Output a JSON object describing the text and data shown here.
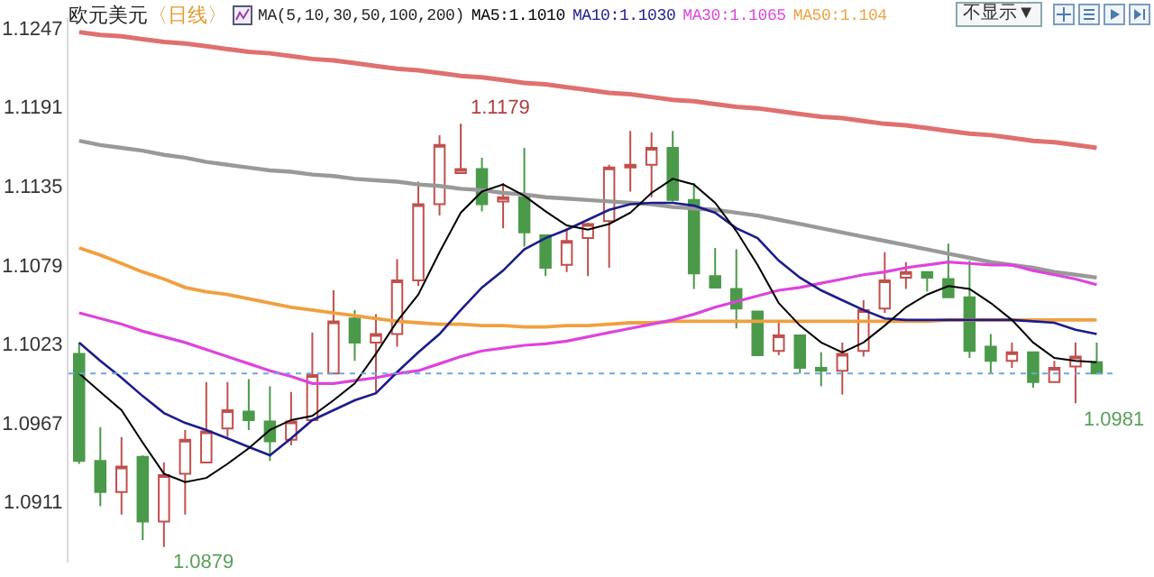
{
  "chart_data": {
    "type": "candlestick",
    "title": "欧元美元",
    "subtitle": "〈日线〉",
    "legend_title": "MA(5,10,30,50,100,200)",
    "legend": "top",
    "categories": [
      null,
      null,
      null,
      null,
      null,
      null,
      null,
      null,
      null,
      null,
      null,
      null,
      null,
      null,
      null,
      null,
      null,
      null,
      null,
      null,
      null,
      null,
      null,
      null,
      null,
      null,
      null,
      null,
      null,
      null,
      null,
      null,
      null,
      null,
      null,
      null,
      null,
      null,
      null,
      null,
      null,
      null,
      null,
      null,
      null,
      null,
      null,
      null,
      null
    ],
    "ohlc": [
      [
        1.1016,
        1.1024,
        1.0938,
        1.094
      ],
      [
        1.094,
        1.0964,
        1.0908,
        1.0918
      ],
      [
        1.0918,
        1.0957,
        1.0902,
        1.0936
      ],
      [
        1.0943,
        1.0944,
        1.0884,
        1.0897
      ],
      [
        1.0897,
        1.0939,
        1.0879,
        1.093
      ],
      [
        1.0931,
        1.0962,
        1.0902,
        1.0955
      ],
      [
        1.0939,
        1.0996,
        1.0939,
        1.0961
      ],
      [
        1.0963,
        1.0996,
        1.0957,
        1.0976
      ],
      [
        1.0975,
        1.0998,
        1.0962,
        1.0969
      ],
      [
        1.0968,
        1.0993,
        1.094,
        1.0954
      ],
      [
        1.0955,
        1.0989,
        1.0951,
        1.0968
      ],
      [
        1.0969,
        1.1031,
        1.0969,
        1.1001
      ],
      [
        1.1002,
        1.1061,
        1.1002,
        1.1039
      ],
      [
        1.1041,
        1.1047,
        1.1011,
        1.1024
      ],
      [
        1.1024,
        1.1044,
        1.0989,
        1.103
      ],
      [
        1.103,
        1.1083,
        1.1021,
        1.1068
      ],
      [
        1.1068,
        1.1138,
        1.1064,
        1.1122
      ],
      [
        1.1122,
        1.1171,
        1.1114,
        1.1164
      ],
      [
        1.1144,
        1.1179,
        1.1144,
        1.1147
      ],
      [
        1.1147,
        1.1155,
        1.1117,
        1.1122
      ],
      [
        1.1124,
        1.1137,
        1.1105,
        1.1127
      ],
      [
        1.1127,
        1.1162,
        1.1092,
        1.1102
      ],
      [
        1.11,
        1.11,
        1.1071,
        1.1077
      ],
      [
        1.1079,
        1.1105,
        1.1074,
        1.1096
      ],
      [
        1.1098,
        1.1109,
        1.1071,
        1.1108
      ],
      [
        1.111,
        1.115,
        1.1077,
        1.1148
      ],
      [
        1.1148,
        1.1174,
        1.1131,
        1.115
      ],
      [
        1.115,
        1.1173,
        1.1127,
        1.1162
      ],
      [
        1.1162,
        1.1174,
        1.1124,
        1.1125
      ],
      [
        1.1125,
        1.1137,
        1.1062,
        1.1073
      ],
      [
        1.1071,
        1.1091,
        1.1063,
        1.1063
      ],
      [
        1.1062,
        1.109,
        1.1034,
        1.1048
      ],
      [
        1.1046,
        1.1046,
        1.1015,
        1.1015
      ],
      [
        1.1018,
        1.1039,
        1.1015,
        1.1029
      ],
      [
        1.1029,
        1.1029,
        1.1002,
        1.1006
      ],
      [
        1.1006,
        1.1017,
        1.0993,
        1.1004
      ],
      [
        1.1004,
        1.1024,
        1.0987,
        1.1016
      ],
      [
        1.1018,
        1.1054,
        1.1014,
        1.1047
      ],
      [
        1.1048,
        1.1088,
        1.1045,
        1.1068
      ],
      [
        1.107,
        1.1081,
        1.1062,
        1.1074
      ],
      [
        1.1074,
        1.1074,
        1.106,
        1.107
      ],
      [
        1.1069,
        1.1094,
        1.1056,
        1.1056
      ],
      [
        1.1056,
        1.1082,
        1.1013,
        1.1018
      ],
      [
        1.1021,
        1.103,
        1.1002,
        1.1011
      ],
      [
        1.1011,
        1.1024,
        1.1006,
        1.1017
      ],
      [
        1.1017,
        1.1017,
        1.0992,
        1.0996
      ],
      [
        1.0996,
        1.1011,
        1.0996,
        1.1006
      ],
      [
        1.1007,
        1.1024,
        1.0981,
        1.1014
      ],
      [
        1.101,
        1.1024,
        1.1002,
        1.1002
      ]
    ],
    "series": [
      {
        "type": "line",
        "color": "#e07070",
        "values": [
          1.1244,
          1.1242,
          1.1241,
          1.1239,
          1.1237,
          1.1236,
          1.1234,
          1.1232,
          1.123,
          1.1229,
          1.1227,
          1.1225,
          1.1224,
          1.1222,
          1.122,
          1.1218,
          1.1217,
          1.1215,
          1.1213,
          1.1212,
          1.121,
          1.1208,
          1.1207,
          1.1205,
          1.1203,
          1.1201,
          1.12,
          1.1198,
          1.1196,
          1.1195,
          1.1193,
          1.1191,
          1.119,
          1.1188,
          1.1186,
          1.1184,
          1.1183,
          1.1181,
          1.1179,
          1.1178,
          1.1176,
          1.1174,
          1.1172,
          1.1171,
          1.1169,
          1.1167,
          1.1166,
          1.1164,
          1.1162
        ]
      },
      {
        "type": "line",
        "color": "#999999",
        "values": [
          1.1167,
          1.1164,
          1.1162,
          1.116,
          1.1157,
          1.1155,
          1.1152,
          1.115,
          1.1148,
          1.1146,
          1.1145,
          1.1143,
          1.1142,
          1.114,
          1.1139,
          1.1138,
          1.1136,
          1.1135,
          1.1133,
          1.1132,
          1.113,
          1.1129,
          1.1127,
          1.1126,
          1.1125,
          1.1124,
          1.1123,
          1.1122,
          1.112,
          1.1119,
          1.1118,
          1.1116,
          1.1114,
          1.1111,
          1.1108,
          1.1105,
          1.1102,
          1.1099,
          1.1096,
          1.1093,
          1.109,
          1.1087,
          1.1084,
          1.1081,
          1.1079,
          1.1077,
          1.1074,
          1.1072,
          1.107
        ]
      },
      {
        "type": "line",
        "name": "MA50:1.104",
        "color": "#f0a040",
        "values": [
          1.1091,
          1.1086,
          1.108,
          1.1074,
          1.1069,
          1.1063,
          1.106,
          1.1058,
          1.1055,
          1.1052,
          1.1049,
          1.1047,
          1.1045,
          1.1043,
          1.1041,
          1.1039,
          1.1038,
          1.1037,
          1.1037,
          1.1036,
          1.1036,
          1.1035,
          1.1035,
          1.1036,
          1.1036,
          1.1037,
          1.1038,
          1.1038,
          1.1039,
          1.1039,
          1.1039,
          1.1039,
          1.1039,
          1.1039,
          1.1039,
          1.1039,
          1.1039,
          1.1039,
          1.1039,
          1.1039,
          1.1039,
          1.104,
          1.104,
          1.104,
          1.104,
          1.104,
          1.104,
          1.104,
          1.104
        ]
      },
      {
        "type": "line",
        "name": "MA30:1.1065",
        "color": "#dd44dd",
        "values": [
          1.1045,
          1.1041,
          1.1037,
          1.1032,
          1.1028,
          1.1024,
          1.1019,
          1.1014,
          1.1009,
          1.1004,
          1.1,
          1.0995,
          1.0995,
          1.0997,
          1.0999,
          1.1002,
          1.1004,
          1.1009,
          1.1014,
          1.1018,
          1.102,
          1.1022,
          1.1023,
          1.1025,
          1.1028,
          1.1031,
          1.1034,
          1.1037,
          1.104,
          1.1044,
          1.1049,
          1.1053,
          1.1057,
          1.1061,
          1.1063,
          1.1066,
          1.1069,
          1.1072,
          1.1074,
          1.1077,
          1.1079,
          1.1081,
          1.108,
          1.1079,
          1.1079,
          1.1075,
          1.1072,
          1.1069,
          1.1065
        ]
      },
      {
        "type": "line",
        "name": "MA10:1.1030",
        "color": "#1c1c8c",
        "values": [
          1.1024,
          1.1011,
          1.0999,
          1.0986,
          1.0974,
          1.0967,
          1.0962,
          1.0956,
          1.095,
          1.0944,
          1.0956,
          1.0969,
          1.0976,
          1.0983,
          1.0988,
          1.1003,
          1.1017,
          1.103,
          1.1047,
          1.1063,
          1.1075,
          1.109,
          1.1098,
          1.1104,
          1.1111,
          1.1118,
          1.1122,
          1.1123,
          1.1123,
          1.1121,
          1.1116,
          1.1105,
          1.1098,
          1.1082,
          1.107,
          1.1061,
          1.1054,
          1.1047,
          1.1041,
          1.104,
          1.104,
          1.104,
          1.104,
          1.104,
          1.104,
          1.1039,
          1.1038,
          1.1033,
          1.103
        ]
      },
      {
        "type": "line",
        "name": "MA5:1.1010",
        "color": "#000000",
        "values": [
          1.1002,
          1.0989,
          1.0976,
          1.0953,
          1.0931,
          1.0925,
          1.0928,
          1.0938,
          1.0949,
          1.0962,
          1.0969,
          1.0972,
          1.0983,
          1.0995,
          1.1016,
          1.1039,
          1.1058,
          1.1088,
          1.1116,
          1.1131,
          1.1136,
          1.1128,
          1.1117,
          1.1107,
          1.1104,
          1.1108,
          1.1116,
          1.113,
          1.114,
          1.1136,
          1.1123,
          1.1103,
          1.1079,
          1.1052,
          1.1036,
          1.1024,
          1.1017,
          1.1024,
          1.1036,
          1.1049,
          1.1058,
          1.1064,
          1.1062,
          1.1052,
          1.104,
          1.1024,
          1.1013,
          1.1011,
          1.101
        ]
      }
    ],
    "ylim": [
      1.0868,
      1.1254
    ],
    "yticks": [
      1.0911,
      1.0967,
      1.1023,
      1.1079,
      1.1135,
      1.1191,
      1.1247
    ],
    "grid": false,
    "tick_labels": "y",
    "ref_lines": [
      {
        "axis": "y",
        "value": 1.1002,
        "color": "#6fa8dc",
        "line_style": "dotted"
      }
    ],
    "annotations": [
      "1.1179",
      "1.0879",
      "1.0981",
      "不显示▼"
    ]
  }
}
